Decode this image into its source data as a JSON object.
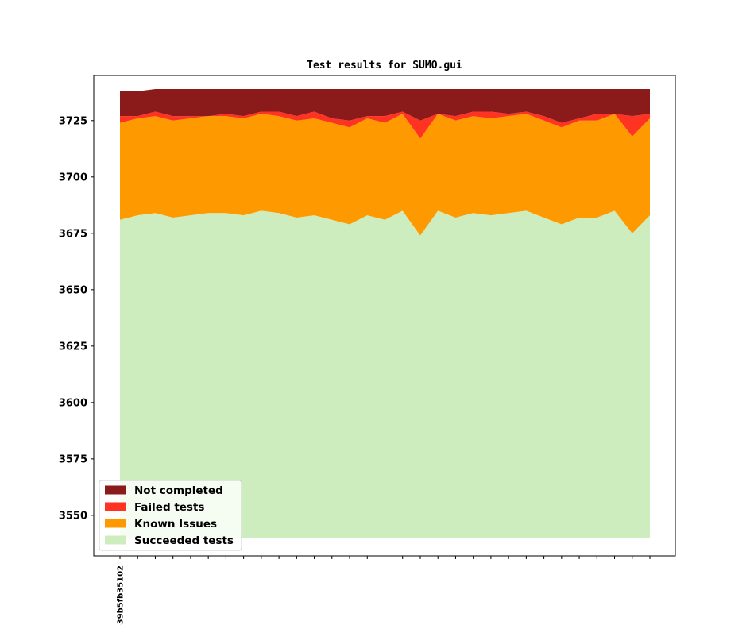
{
  "chart_data": {
    "type": "area",
    "stacked": true,
    "title": "Test results for SUMO.gui",
    "xlabel": "",
    "ylabel": "",
    "ylim": [
      3532,
      3745
    ],
    "yticks": [
      3550,
      3575,
      3600,
      3625,
      3650,
      3675,
      3700,
      3725
    ],
    "x_count": 31,
    "x_tick_labels": [
      {
        "index": 0,
        "label": "-39b5fb35102"
      }
    ],
    "legend_position": "lower-left",
    "grid": false,
    "baseline": 3540,
    "series": [
      {
        "name": "Succeeded tests",
        "color": "#ceedbf",
        "top": [
          3681,
          3683,
          3684,
          3682,
          3683,
          3684,
          3684,
          3683,
          3685,
          3684,
          3682,
          3683,
          3681,
          3679,
          3683,
          3681,
          3685,
          3674,
          3685,
          3682,
          3684,
          3683,
          3684,
          3685,
          3682,
          3679,
          3682,
          3682,
          3685,
          3675,
          3683
        ]
      },
      {
        "name": "Known Issues",
        "color": "#ff9900",
        "top": [
          3724,
          3726,
          3727,
          3725,
          3726,
          3727,
          3727,
          3726,
          3728,
          3727,
          3725,
          3726,
          3724,
          3722,
          3726,
          3724,
          3728,
          3717,
          3728,
          3725,
          3727,
          3726,
          3727,
          3728,
          3725,
          3722,
          3725,
          3725,
          3728,
          3718,
          3726
        ]
      },
      {
        "name": "Failed tests",
        "color": "#ff3322",
        "top": [
          3727,
          3727,
          3729,
          3727,
          3727,
          3727,
          3728,
          3727,
          3729,
          3729,
          3727,
          3729,
          3726,
          3725,
          3727,
          3727,
          3729,
          3725,
          3728,
          3727,
          3729,
          3729,
          3728,
          3729,
          3727,
          3724,
          3726,
          3728,
          3728,
          3727,
          3728
        ]
      },
      {
        "name": "Not completed",
        "color": "#8b1a1a",
        "top": [
          3738,
          3738,
          3739,
          3739,
          3739,
          3739,
          3739,
          3739,
          3739,
          3739,
          3739,
          3739,
          3739,
          3739,
          3739,
          3739,
          3739,
          3739,
          3739,
          3739,
          3739,
          3739,
          3739,
          3739,
          3739,
          3739,
          3739,
          3739,
          3739,
          3739,
          3739
        ]
      }
    ],
    "legend": [
      {
        "label": "Not completed",
        "color": "#8b1a1a"
      },
      {
        "label": "Failed tests",
        "color": "#ff3322"
      },
      {
        "label": "Known Issues",
        "color": "#ff9900"
      },
      {
        "label": "Succeeded tests",
        "color": "#ceedbf"
      }
    ]
  }
}
